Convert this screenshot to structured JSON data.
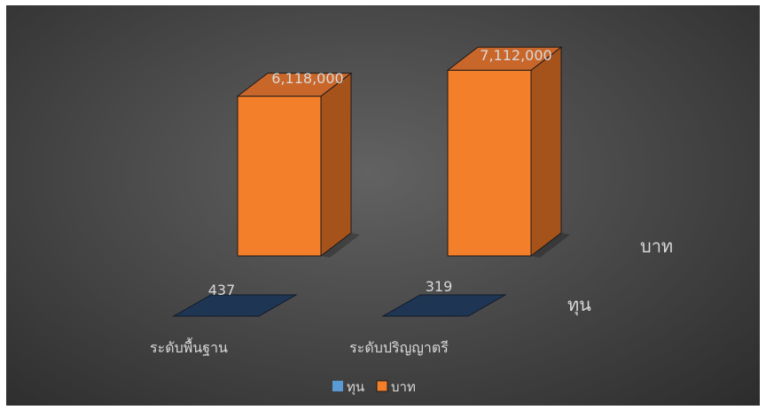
{
  "chart_data": {
    "type": "bar",
    "categories": [
      "ระดับพื้นฐาน",
      "ระดับปริญญาตรี"
    ],
    "series": [
      {
        "name": "ทุน",
        "values": [
          437,
          319
        ],
        "value_labels": [
          "437",
          "319"
        ],
        "color": "#1f3554"
      },
      {
        "name": "บาท",
        "values": [
          6118000,
          7112000
        ],
        "value_labels": [
          "6,118,000",
          "7,112,000"
        ],
        "color": "#f47f2a"
      }
    ],
    "depth_axis_labels": [
      "บาท",
      "ทุน"
    ],
    "legend_position": "bottom",
    "grid": false,
    "three_d": true,
    "ylim": [
      0,
      7800000
    ]
  }
}
